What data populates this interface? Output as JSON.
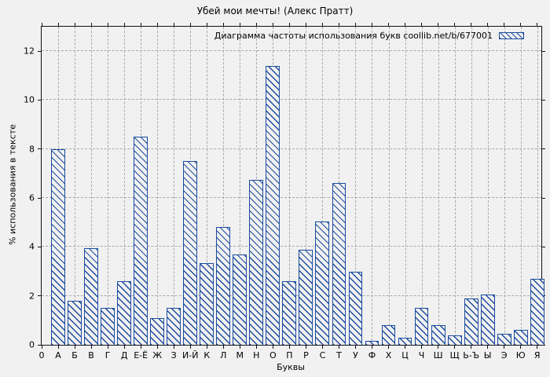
{
  "title": "Убей мои мечты! (Алекс Пратт)",
  "legend": {
    "label": "Диаграмма частоты использования букв coollib.net/b/677001"
  },
  "colors": {
    "bar": "#1b4b9e",
    "background": "#f1f1f1",
    "grid": "#a9a9a9",
    "border": "#111111"
  },
  "chart_data": {
    "type": "bar",
    "title": "Убей мои мечты! (Алекс Пратт)",
    "xlabel": "Буквы",
    "ylabel": "% использования в тексте",
    "ylim": [
      0,
      13
    ],
    "yticks": [
      0,
      2,
      4,
      6,
      8,
      10,
      12
    ],
    "grid": true,
    "legend_position": "top-right",
    "categories": [
      "0",
      "А",
      "Б",
      "В",
      "Г",
      "Д",
      "Е-Ё",
      "Ж",
      "З",
      "И-Й",
      "К",
      "Л",
      "М",
      "Н",
      "О",
      "П",
      "Р",
      "С",
      "Т",
      "У",
      "Ф",
      "Х",
      "Ц",
      "Ч",
      "Ш",
      "Щ",
      "Ь-Ъ",
      "Ы",
      "Э",
      "Ю",
      "Я"
    ],
    "values": [
      0,
      8.0,
      1.8,
      3.95,
      1.5,
      2.6,
      8.5,
      1.1,
      1.5,
      7.5,
      3.35,
      4.8,
      3.7,
      6.75,
      11.4,
      2.6,
      3.9,
      5.05,
      6.6,
      3.0,
      0.15,
      0.8,
      0.3,
      1.5,
      0.8,
      0.4,
      1.9,
      2.05,
      0.45,
      0.6,
      2.7
    ]
  }
}
